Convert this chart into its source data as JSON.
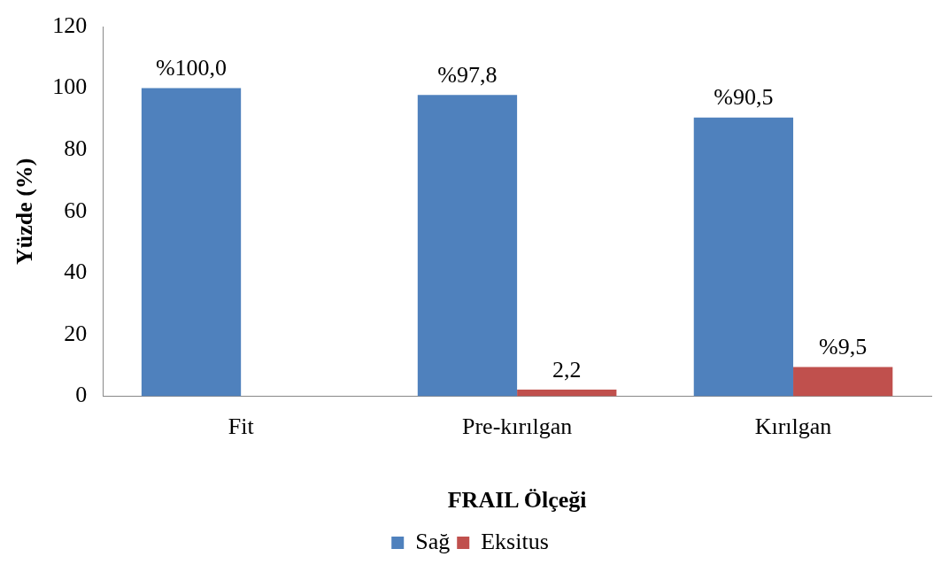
{
  "chart_data": {
    "type": "bar",
    "xlabel": "FRAIL Ölçeği",
    "ylabel": "Yüzde (%)",
    "categories": [
      "Fit",
      "Pre-kırılgan",
      "Kırılgan"
    ],
    "series": [
      {
        "name": "Sağ",
        "color": "#4f81bd",
        "values": [
          100,
          97.8,
          90.5
        ],
        "value_labels": [
          "%100,0",
          "%97,8",
          "%90,5"
        ]
      },
      {
        "name": "Eksitus",
        "color": "#c0504d",
        "values": [
          null,
          2.2,
          9.5
        ],
        "value_labels": [
          null,
          "2,2",
          "%9,5"
        ]
      }
    ],
    "ylim": [
      0,
      120
    ],
    "yticks": [
      0,
      20,
      40,
      60,
      80,
      100,
      120
    ],
    "grid": false,
    "legend": "bottom"
  }
}
